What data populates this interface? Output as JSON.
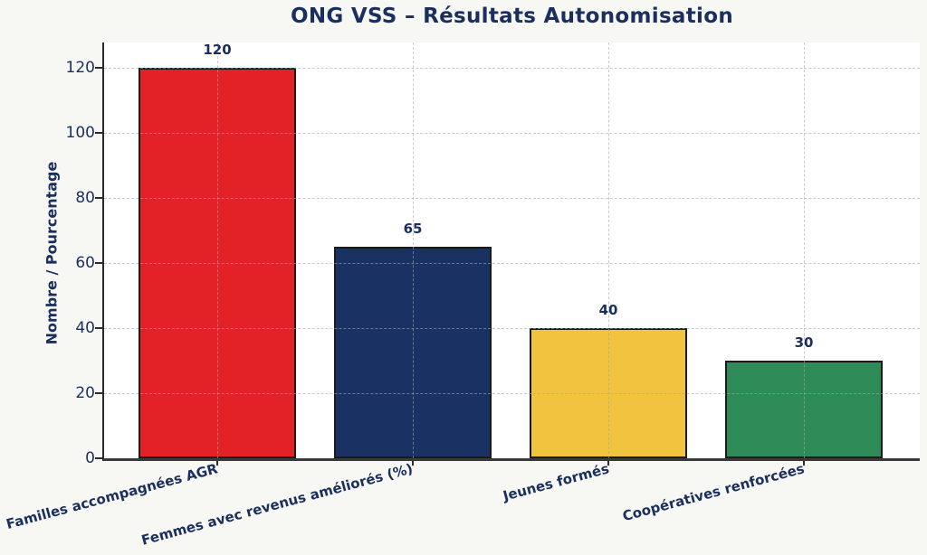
{
  "chart_data": {
    "type": "bar",
    "title": "ONG VSS – Résultats Autonomisation",
    "categories": [
      "Familles accompagnées AGR",
      "Femmes avec revenus améliorés (%)",
      "Jeunes formés",
      "Coopératives renforcées"
    ],
    "values": [
      120,
      65,
      40,
      30
    ],
    "value_labels": [
      "120",
      "65",
      "40",
      "30"
    ],
    "bar_colors": [
      "#e32227",
      "#1a3263",
      "#f2c33f",
      "#2e8b57"
    ],
    "bar_edge_color": "#1a1a1a",
    "xlabel": "",
    "ylabel": "Nombre / Pourcentage",
    "ylim": [
      0,
      128
    ],
    "yticks": [
      0,
      20,
      40,
      60,
      80,
      100,
      120
    ],
    "grid": true,
    "grid_style": "dashed",
    "legend_position": "none"
  },
  "colors": {
    "figure_background": "#f7f7f4",
    "plot_background": "#ffffff",
    "text": "#1b2f5e",
    "grid": "#a5a5a5",
    "axis_spine": "#2a2a2a"
  }
}
